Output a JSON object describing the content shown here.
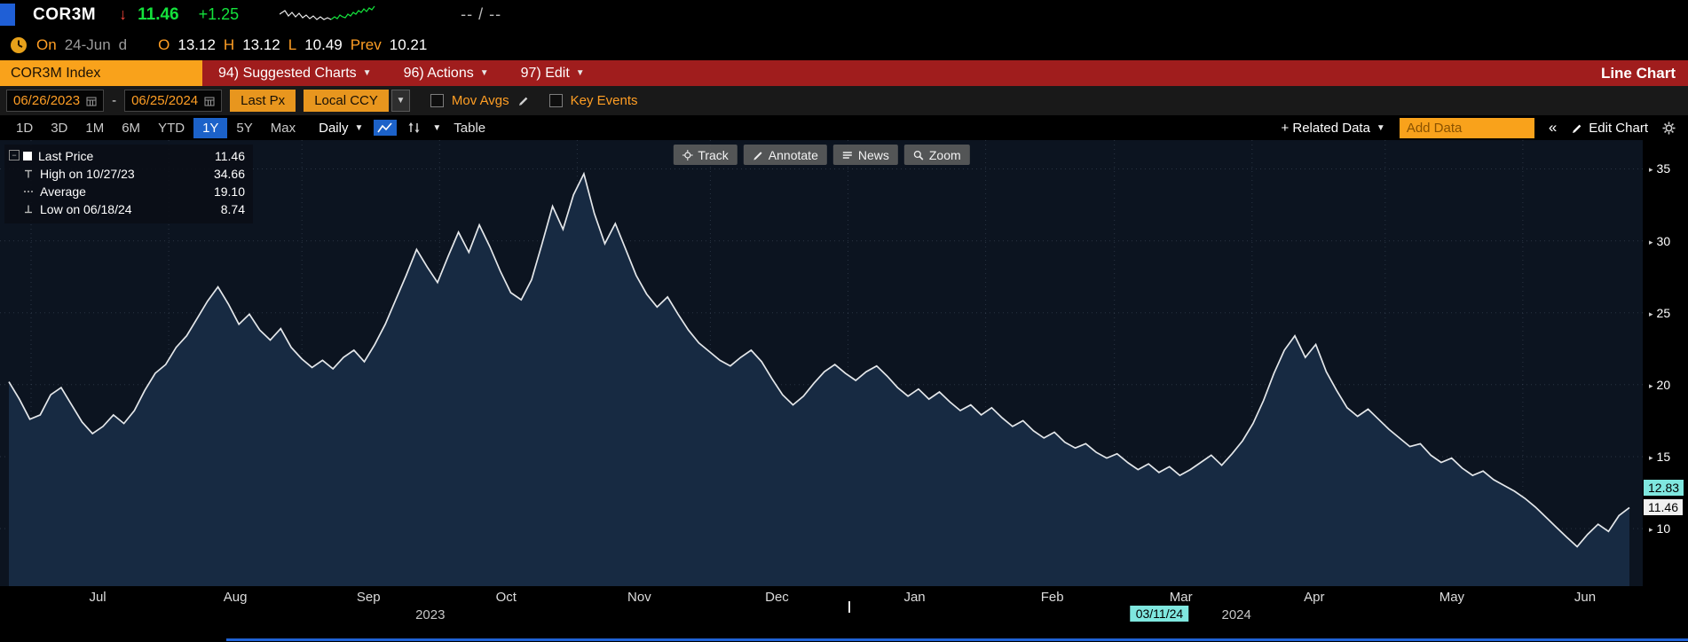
{
  "colors": {
    "amber": "#ff9e24",
    "up_green": "#14e23c",
    "down_red": "#f2443a",
    "menu_red": "#a01d1d",
    "active_blue": "#1c62c9",
    "chart_line": "#e4e7ea",
    "chart_fill": "#172a42",
    "badge_teal": "#7fe7df"
  },
  "top_bar": {
    "ticker": "COR3M",
    "direction_arrow": "↓",
    "last_price": "11.46",
    "change": "+1.25",
    "bid_ask": "-- / --"
  },
  "ohlc_bar": {
    "session": "On",
    "date": "24-Jun",
    "periodicity": "d",
    "o_label": "O",
    "o": "13.12",
    "h_label": "H",
    "h": "13.12",
    "l_label": "L",
    "l": "10.49",
    "prev_label": "Prev",
    "prev": "10.21"
  },
  "menu_bar": {
    "security_field": "COR3M Index",
    "items": [
      {
        "label": "94) Suggested Charts"
      },
      {
        "label": "96) Actions"
      },
      {
        "label": "97) Edit"
      }
    ],
    "view_label": "Line Chart"
  },
  "toolbar": {
    "date_from": "06/26/2023",
    "range_sep": "-",
    "date_to": "06/25/2024",
    "price_field": "Last Px",
    "currency_field": "Local CCY",
    "mov_avgs_label": "Mov Avgs",
    "key_events_label": "Key Events"
  },
  "period_bar": {
    "periods": [
      "1D",
      "3D",
      "1M",
      "6M",
      "YTD",
      "1Y",
      "5Y",
      "Max"
    ],
    "active": "1Y",
    "frequency": "Daily",
    "table_label": "Table",
    "related_data_label": "+ Related Data",
    "add_data_value": "Add Data",
    "collapse_label": "«",
    "edit_chart_label": "Edit Chart"
  },
  "chart": {
    "tools": [
      {
        "label": "Track"
      },
      {
        "label": "Annotate"
      },
      {
        "label": "News"
      },
      {
        "label": "Zoom"
      }
    ],
    "legend": [
      {
        "label": "Last Price",
        "value": "11.46"
      },
      {
        "label": "High on 10/27/23",
        "value": "34.66"
      },
      {
        "label": "Average",
        "value": "19.10"
      },
      {
        "label": "Low on 06/18/24",
        "value": "8.74"
      }
    ],
    "price_badges": {
      "tracked": "12.83",
      "last": "11.46"
    }
  },
  "axis": {
    "y_ticks": [
      10,
      15,
      20,
      25,
      30,
      35
    ],
    "x_ticks": [
      "Jul",
      "Aug",
      "Sep",
      "Oct",
      "Nov",
      "Dec",
      "Jan",
      "Feb",
      "Mar",
      "Apr",
      "May",
      "Jun"
    ],
    "year_labels": [
      "2023",
      "2024"
    ],
    "crosshair_date": "03/11/24"
  },
  "chart_data": {
    "type": "area",
    "title": "COR3M Index - Last Price, 1Y Daily",
    "x_range": [
      "06/26/2023",
      "06/25/2024"
    ],
    "x_tick_labels": [
      "Jul",
      "Aug",
      "Sep",
      "Oct",
      "Nov",
      "Dec",
      "Jan",
      "Feb",
      "Mar",
      "Apr",
      "May",
      "Jun"
    ],
    "ylim": [
      6,
      37
    ],
    "y_gridlines": [
      10,
      15,
      20,
      25,
      30,
      35
    ],
    "grid": "dotted",
    "legend_position": "top-left",
    "stats": {
      "last": 11.46,
      "high": 34.66,
      "high_date": "10/27/23",
      "average": 19.1,
      "low": 8.74,
      "low_date": "06/18/24"
    },
    "series": [
      {
        "name": "Last Price",
        "values": [
          20.2,
          19.0,
          17.6,
          17.9,
          19.3,
          19.8,
          18.6,
          17.4,
          16.6,
          17.1,
          17.9,
          17.3,
          18.2,
          19.6,
          20.8,
          21.4,
          22.6,
          23.4,
          24.6,
          25.8,
          26.8,
          25.6,
          24.2,
          24.9,
          23.8,
          23.1,
          23.9,
          22.6,
          21.8,
          21.2,
          21.7,
          21.1,
          21.9,
          22.4,
          21.6,
          22.8,
          24.2,
          25.9,
          27.6,
          29.4,
          28.2,
          27.1,
          28.9,
          30.6,
          29.2,
          31.1,
          29.6,
          27.9,
          26.4,
          25.9,
          27.3,
          29.8,
          32.4,
          30.8,
          33.2,
          34.66,
          31.9,
          29.8,
          31.2,
          29.4,
          27.6,
          26.3,
          25.4,
          26.1,
          24.9,
          23.8,
          22.9,
          22.3,
          21.7,
          21.3,
          21.9,
          22.4,
          21.6,
          20.4,
          19.3,
          18.6,
          19.2,
          20.1,
          20.9,
          21.4,
          20.8,
          20.3,
          20.9,
          21.3,
          20.6,
          19.8,
          19.2,
          19.7,
          19.0,
          19.5,
          18.8,
          18.2,
          18.6,
          17.9,
          18.4,
          17.7,
          17.1,
          17.5,
          16.8,
          16.3,
          16.7,
          16.0,
          15.6,
          15.9,
          15.3,
          14.9,
          15.2,
          14.6,
          14.1,
          14.5,
          13.9,
          14.3,
          13.7,
          14.1,
          14.6,
          15.1,
          14.4,
          15.2,
          16.1,
          17.3,
          18.9,
          20.8,
          22.4,
          23.4,
          21.9,
          22.8,
          20.9,
          19.6,
          18.4,
          17.8,
          18.3,
          17.6,
          16.9,
          16.3,
          15.7,
          15.9,
          15.1,
          14.6,
          14.9,
          14.2,
          13.7,
          14.0,
          13.4,
          13.0,
          12.6,
          12.1,
          11.5,
          10.8,
          10.1,
          9.4,
          8.74,
          9.6,
          10.3,
          9.8,
          10.9,
          11.46
        ]
      }
    ]
  }
}
